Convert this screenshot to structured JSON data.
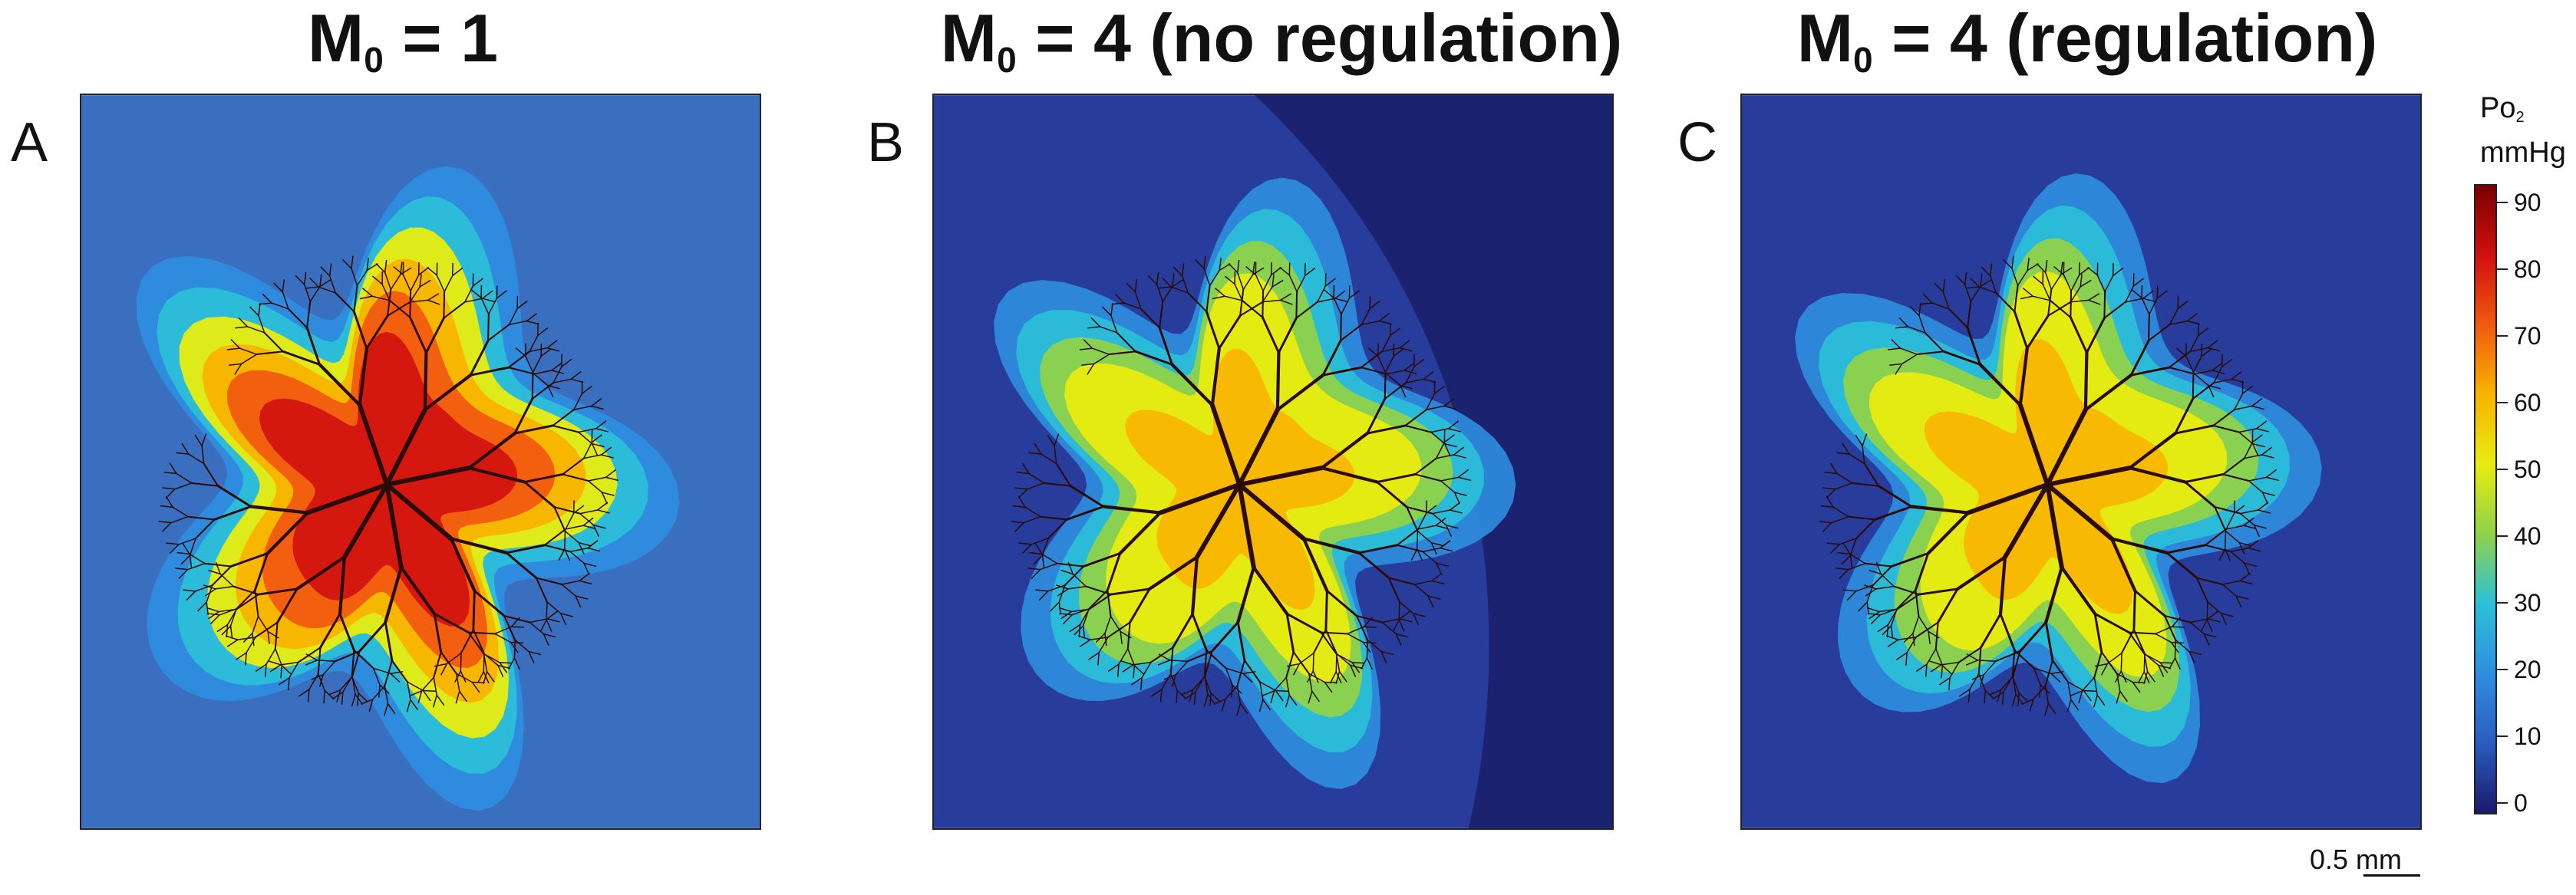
{
  "panels": [
    {
      "id": "A",
      "letter": "A",
      "title_main": "M",
      "title_sub": "0",
      "title_rest": " = 1",
      "bg": "#3a6fc0"
    },
    {
      "id": "B",
      "letter": "B",
      "title_main": "M",
      "title_sub": "0",
      "title_rest": " = 4 (no regulation)",
      "bg": "#283c9c"
    },
    {
      "id": "C",
      "letter": "C",
      "title_main": "M",
      "title_sub": "0",
      "title_rest": " = 4 (regulation)",
      "bg": "#283c9c"
    }
  ],
  "colorbar": {
    "label_main": "Po",
    "label_sub": "2",
    "label_unit": "mmHg",
    "ticks": [
      "90",
      "80",
      "70",
      "60",
      "50",
      "40",
      "30",
      "20",
      "10",
      "0"
    ],
    "colors": [
      "#7a0000",
      "#d01010",
      "#f05a10",
      "#f8b400",
      "#e8ec10",
      "#8fd24a",
      "#2cc0d8",
      "#2f8ee0",
      "#2a5cc0",
      "#1a1a6c"
    ]
  },
  "scale": {
    "label": "0.5 mm"
  }
}
